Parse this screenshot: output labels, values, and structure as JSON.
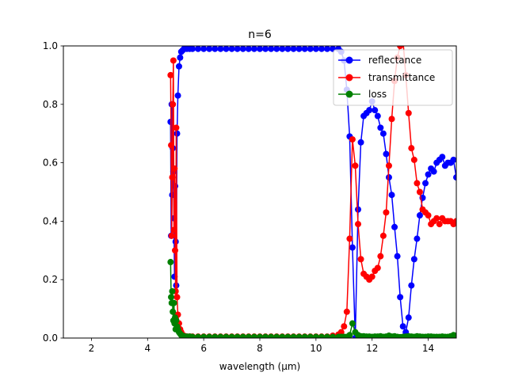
{
  "chart_data": {
    "type": "line",
    "title": "n=6",
    "xlabel": "wavelength (µm)",
    "ylabel": "",
    "xlim": [
      1.0,
      15.0
    ],
    "ylim": [
      0.0,
      1.0
    ],
    "xticks": [
      2,
      4,
      6,
      8,
      10,
      12,
      14
    ],
    "yticks": [
      0.0,
      0.2,
      0.4,
      0.6,
      0.8,
      1.0
    ],
    "xtick_labels": [
      "2",
      "4",
      "6",
      "8",
      "10",
      "12",
      "14"
    ],
    "ytick_labels": [
      "0.0",
      "0.2",
      "0.4",
      "0.6",
      "0.8",
      "1.0"
    ],
    "grid": false,
    "legend_position": "top-right",
    "series": [
      {
        "name": "reflectance",
        "color": "#0000ff",
        "x": [
          4.82,
          4.84,
          4.86,
          4.88,
          4.9,
          4.92,
          4.94,
          4.96,
          4.98,
          5.0,
          5.02,
          5.05,
          5.08,
          5.12,
          5.16,
          5.2,
          5.25,
          5.3,
          5.4,
          5.5,
          5.6,
          5.8,
          6.0,
          6.2,
          6.4,
          6.6,
          6.8,
          7.0,
          7.2,
          7.4,
          7.6,
          7.8,
          8.0,
          8.2,
          8.4,
          8.6,
          8.8,
          9.0,
          9.2,
          9.4,
          9.6,
          9.8,
          10.0,
          10.2,
          10.4,
          10.6,
          10.8,
          10.9,
          11.0,
          11.1,
          11.2,
          11.3,
          11.4,
          11.5,
          11.6,
          11.7,
          11.8,
          11.9,
          12.0,
          12.1,
          12.2,
          12.3,
          12.4,
          12.5,
          12.6,
          12.7,
          12.8,
          12.9,
          13.0,
          13.1,
          13.2,
          13.3,
          13.4,
          13.5,
          13.6,
          13.7,
          13.8,
          13.9,
          14.0,
          14.1,
          14.2,
          14.3,
          14.4,
          14.5,
          14.6,
          14.7,
          14.8,
          14.9,
          15.0
        ],
        "y": [
          0.74,
          0.35,
          0.8,
          0.49,
          0.65,
          0.57,
          0.41,
          0.21,
          0.52,
          0.33,
          0.18,
          0.7,
          0.83,
          0.93,
          0.96,
          0.98,
          0.985,
          0.99,
          0.99,
          0.99,
          0.99,
          0.99,
          0.99,
          0.99,
          0.99,
          0.99,
          0.99,
          0.99,
          0.99,
          0.99,
          0.99,
          0.99,
          0.99,
          0.99,
          0.99,
          0.99,
          0.99,
          0.99,
          0.99,
          0.99,
          0.99,
          0.99,
          0.99,
          0.99,
          0.99,
          0.99,
          0.99,
          0.98,
          0.95,
          0.85,
          0.69,
          0.31,
          0.0,
          0.44,
          0.67,
          0.76,
          0.77,
          0.78,
          0.81,
          0.78,
          0.76,
          0.72,
          0.7,
          0.63,
          0.55,
          0.49,
          0.38,
          0.28,
          0.14,
          0.04,
          0.02,
          0.07,
          0.18,
          0.27,
          0.34,
          0.42,
          0.48,
          0.53,
          0.56,
          0.58,
          0.57,
          0.6,
          0.61,
          0.62,
          0.59,
          0.6,
          0.6,
          0.61,
          0.55
        ]
      },
      {
        "name": "transmittance",
        "color": "#ff0000",
        "x": [
          4.82,
          4.84,
          4.86,
          4.88,
          4.9,
          4.92,
          4.94,
          4.96,
          4.98,
          5.0,
          5.02,
          5.05,
          5.08,
          5.12,
          5.16,
          5.2,
          5.25,
          5.3,
          5.4,
          5.5,
          5.6,
          5.8,
          6.0,
          6.2,
          6.4,
          6.6,
          6.8,
          7.0,
          7.2,
          7.4,
          7.6,
          7.8,
          8.0,
          8.2,
          8.4,
          8.6,
          8.8,
          9.0,
          9.2,
          9.4,
          9.6,
          9.8,
          10.0,
          10.2,
          10.4,
          10.6,
          10.8,
          10.9,
          11.0,
          11.1,
          11.2,
          11.3,
          11.4,
          11.5,
          11.6,
          11.7,
          11.8,
          11.9,
          12.0,
          12.1,
          12.2,
          12.3,
          12.4,
          12.5,
          12.6,
          12.7,
          12.8,
          12.9,
          13.0,
          13.1,
          13.2,
          13.3,
          13.4,
          13.5,
          13.6,
          13.7,
          13.8,
          13.9,
          14.0,
          14.1,
          14.2,
          14.3,
          14.4,
          14.5,
          14.6,
          14.7,
          14.8,
          14.9,
          15.0
        ],
        "y": [
          0.9,
          0.66,
          0.35,
          0.55,
          0.8,
          0.95,
          0.37,
          0.58,
          0.3,
          0.16,
          0.72,
          0.14,
          0.08,
          0.05,
          0.03,
          0.02,
          0.01,
          0.008,
          0.005,
          0.005,
          0.005,
          0.005,
          0.005,
          0.005,
          0.005,
          0.005,
          0.005,
          0.005,
          0.005,
          0.005,
          0.005,
          0.005,
          0.005,
          0.005,
          0.005,
          0.005,
          0.005,
          0.005,
          0.005,
          0.005,
          0.005,
          0.005,
          0.005,
          0.005,
          0.005,
          0.008,
          0.012,
          0.02,
          0.04,
          0.09,
          0.34,
          0.68,
          0.59,
          0.39,
          0.27,
          0.22,
          0.21,
          0.2,
          0.21,
          0.23,
          0.24,
          0.28,
          0.35,
          0.43,
          0.59,
          0.75,
          0.88,
          0.96,
          1.0,
          1.02,
          0.9,
          0.77,
          0.65,
          0.61,
          0.53,
          0.5,
          0.44,
          0.43,
          0.42,
          0.39,
          0.4,
          0.41,
          0.39,
          0.41,
          0.4,
          0.4,
          0.4,
          0.39,
          0.4
        ]
      },
      {
        "name": "loss",
        "color": "#008000",
        "x": [
          4.82,
          4.84,
          4.86,
          4.88,
          4.9,
          4.92,
          4.94,
          4.96,
          4.98,
          5.0,
          5.02,
          5.05,
          5.08,
          5.12,
          5.16,
          5.2,
          5.25,
          5.3,
          5.4,
          5.5,
          5.6,
          5.8,
          6.0,
          6.2,
          6.4,
          6.6,
          6.8,
          7.0,
          7.2,
          7.4,
          7.6,
          7.8,
          8.0,
          8.2,
          8.4,
          8.6,
          8.8,
          9.0,
          9.2,
          9.4,
          9.6,
          9.8,
          10.0,
          10.2,
          10.4,
          10.6,
          10.8,
          10.9,
          11.0,
          11.1,
          11.2,
          11.3,
          11.4,
          11.5,
          11.6,
          11.7,
          11.8,
          11.9,
          12.0,
          12.1,
          12.2,
          12.3,
          12.4,
          12.5,
          12.6,
          12.7,
          12.8,
          12.9,
          13.0,
          13.1,
          13.2,
          13.3,
          13.4,
          13.5,
          13.6,
          13.7,
          13.8,
          13.9,
          14.0,
          14.1,
          14.2,
          14.3,
          14.4,
          14.5,
          14.6,
          14.7,
          14.8,
          14.9,
          15.0
        ],
        "y": [
          0.26,
          0.14,
          0.12,
          0.16,
          0.09,
          0.06,
          0.12,
          0.05,
          0.07,
          0.03,
          0.06,
          0.04,
          0.03,
          0.02,
          0.015,
          0.01,
          0.008,
          0.006,
          0.005,
          0.005,
          0.004,
          0.004,
          0.004,
          0.004,
          0.004,
          0.004,
          0.004,
          0.004,
          0.004,
          0.004,
          0.004,
          0.004,
          0.004,
          0.004,
          0.004,
          0.004,
          0.004,
          0.004,
          0.004,
          0.004,
          0.004,
          0.004,
          0.004,
          0.004,
          0.004,
          0.004,
          0.004,
          0.004,
          0.004,
          0.004,
          0.01,
          0.05,
          0.02,
          0.01,
          0.006,
          0.006,
          0.005,
          0.005,
          0.004,
          0.005,
          0.005,
          0.006,
          0.004,
          0.005,
          0.008,
          0.005,
          0.006,
          0.004,
          0.003,
          0.004,
          0.005,
          0.006,
          0.005,
          0.004,
          0.006,
          0.005,
          0.004,
          0.004,
          0.005,
          0.005,
          0.004,
          0.004,
          0.004,
          0.005,
          0.004,
          0.004,
          0.006,
          0.01,
          0.008
        ]
      }
    ]
  }
}
